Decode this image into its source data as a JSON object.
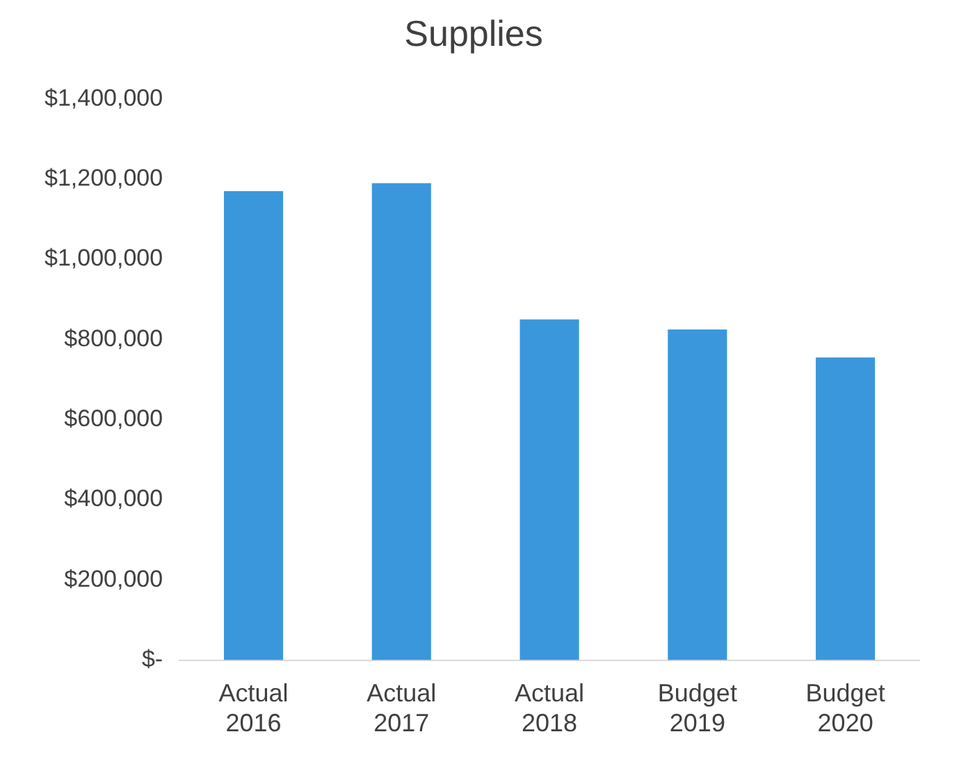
{
  "chart_data": {
    "type": "bar",
    "title": "Supplies",
    "categories": [
      "Actual 2016",
      "Actual 2017",
      "Actual 2018",
      "Budget 2019",
      "Budget 2020"
    ],
    "values": [
      1170000,
      1190000,
      850000,
      825000,
      755000
    ],
    "color": "#3a97dc",
    "ylim": [
      0,
      1400000
    ],
    "yticks": [
      {
        "value": 0,
        "label": "$-"
      },
      {
        "value": 200000,
        "label": "$200,000"
      },
      {
        "value": 400000,
        "label": "$400,000"
      },
      {
        "value": 600000,
        "label": "$600,000"
      },
      {
        "value": 800000,
        "label": "$800,000"
      },
      {
        "value": 1000000,
        "label": "$1,000,000"
      },
      {
        "value": 1200000,
        "label": "$1,200,000"
      },
      {
        "value": 1400000,
        "label": "$1,400,000"
      }
    ],
    "grid": false,
    "legend": false
  }
}
